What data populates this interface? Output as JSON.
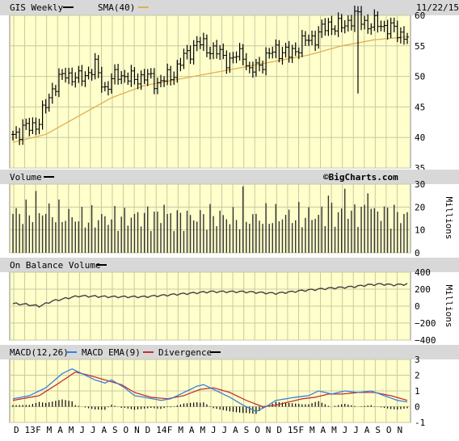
{
  "header": {
    "symbol_label": "GIS Weekly",
    "sma_label": "SMA(40)",
    "date": "11/22/15"
  },
  "volume_panel": {
    "title": "Volume",
    "watermark": "©BigCharts.com",
    "unit": "Millions"
  },
  "obv_panel": {
    "title": "On Balance Volume",
    "unit": "Millions"
  },
  "macd_panel": {
    "legend": [
      "MACD(12,26)",
      "MACD EMA(9)",
      "Divergence"
    ]
  },
  "colors": {
    "plot_bg": "#ffffcc",
    "grid": "#c8c8a0",
    "header_bg": "#d8d8d8",
    "price": "#000000",
    "sma": "#e0b050",
    "obv": "#404040",
    "macd": "#3a7fdc",
    "signal": "#c03030",
    "divergence": "#000000"
  },
  "chart_data": [
    {
      "type": "candlestick",
      "title": "GIS Weekly",
      "x_months": [
        "D",
        "13",
        "F",
        "M",
        "A",
        "M",
        "J",
        "J",
        "A",
        "S",
        "O",
        "N",
        "D",
        "14",
        "F",
        "M",
        "A",
        "M",
        "J",
        "J",
        "A",
        "S",
        "O",
        "N",
        "D",
        "15",
        "F",
        "M",
        "A",
        "M",
        "J",
        "J",
        "A",
        "S",
        "O",
        "N"
      ],
      "ylim": [
        35,
        60
      ],
      "yticks": [
        35,
        40,
        45,
        50,
        55,
        60
      ],
      "price_keypoints": [
        [
          0,
          40.5
        ],
        [
          8,
          42.5
        ],
        [
          12,
          48
        ],
        [
          16,
          50.5
        ],
        [
          20,
          49.5
        ],
        [
          25,
          51.5
        ],
        [
          28,
          48
        ],
        [
          32,
          50.5
        ],
        [
          36,
          49.5
        ],
        [
          40,
          50
        ],
        [
          44,
          49
        ],
        [
          48,
          50
        ],
        [
          52,
          53
        ],
        [
          56,
          55.5
        ],
        [
          62,
          54
        ],
        [
          66,
          52.5
        ],
        [
          70,
          54
        ],
        [
          72,
          50.5
        ],
        [
          76,
          52.5
        ],
        [
          80,
          54.5
        ],
        [
          84,
          53.5
        ],
        [
          88,
          55.5
        ],
        [
          92,
          56.5
        ],
        [
          96,
          58.5
        ],
        [
          100,
          58
        ],
        [
          104,
          60
        ],
        [
          108,
          58.5
        ],
        [
          112,
          58.5
        ],
        [
          116,
          57.5
        ],
        [
          120,
          56.5
        ]
      ],
      "spike": {
        "index": 105,
        "low": 47.2
      },
      "series": [
        {
          "name": "SMA(40)",
          "keypoints": [
            [
              0,
              39.2
            ],
            [
              10,
              40.5
            ],
            [
              20,
              43.5
            ],
            [
              30,
              46.5
            ],
            [
              40,
              48.5
            ],
            [
              50,
              49.5
            ],
            [
              60,
              50.5
            ],
            [
              70,
              51.5
            ],
            [
              80,
              52.5
            ],
            [
              90,
              53.5
            ],
            [
              100,
              55
            ],
            [
              110,
              56
            ],
            [
              120,
              56.5
            ]
          ]
        }
      ]
    },
    {
      "type": "bar",
      "title": "Volume",
      "ylabel": "Millions",
      "ylim": [
        0,
        30
      ],
      "yticks": [
        0,
        10,
        20,
        30
      ],
      "volume_keypoints": [
        [
          0,
          17
        ],
        [
          10,
          18
        ],
        [
          20,
          15
        ],
        [
          30,
          15
        ],
        [
          40,
          16
        ],
        [
          50,
          15
        ],
        [
          60,
          16
        ],
        [
          70,
          15
        ],
        [
          80,
          16
        ],
        [
          90,
          16
        ],
        [
          100,
          17
        ],
        [
          110,
          18
        ],
        [
          120,
          16
        ]
      ],
      "volume_peaks": [
        [
          7,
          27
        ],
        [
          46,
          21
        ],
        [
          70,
          29
        ],
        [
          96,
          25
        ],
        [
          101,
          28
        ],
        [
          108,
          26
        ]
      ]
    },
    {
      "type": "line",
      "title": "On Balance Volume",
      "ylabel": "Millions",
      "ylim": [
        -400,
        400
      ],
      "yticks": [
        -400,
        -200,
        0,
        200,
        400
      ],
      "series": [
        {
          "name": "On Balance Volume",
          "keypoints": [
            [
              0,
              30
            ],
            [
              4,
              20
            ],
            [
              8,
              0
            ],
            [
              12,
              60
            ],
            [
              16,
              90
            ],
            [
              20,
              120
            ],
            [
              30,
              110
            ],
            [
              40,
              110
            ],
            [
              50,
              140
            ],
            [
              60,
              170
            ],
            [
              70,
              170
            ],
            [
              80,
              150
            ],
            [
              90,
              190
            ],
            [
              96,
              210
            ],
            [
              100,
              220
            ],
            [
              104,
              230
            ],
            [
              108,
              250
            ],
            [
              112,
              260
            ],
            [
              116,
              250
            ],
            [
              120,
              260
            ]
          ]
        }
      ]
    },
    {
      "type": "line",
      "title": "MACD",
      "ylim": [
        -1,
        3
      ],
      "yticks": [
        -1,
        0,
        1,
        2,
        3
      ],
      "series": [
        {
          "name": "MACD(12,26)",
          "keypoints": [
            [
              0,
              0.5
            ],
            [
              5,
              0.7
            ],
            [
              10,
              1.2
            ],
            [
              15,
              2.1
            ],
            [
              18,
              2.4
            ],
            [
              21,
              2.1
            ],
            [
              25,
              1.7
            ],
            [
              28,
              1.5
            ],
            [
              30,
              1.7
            ],
            [
              34,
              1.2
            ],
            [
              37,
              0.7
            ],
            [
              40,
              0.6
            ],
            [
              45,
              0.4
            ],
            [
              48,
              0.5
            ],
            [
              52,
              0.9
            ],
            [
              56,
              1.3
            ],
            [
              58,
              1.4
            ],
            [
              62,
              1.0
            ],
            [
              66,
              0.6
            ],
            [
              70,
              0.1
            ],
            [
              74,
              -0.3
            ],
            [
              77,
              0.0
            ],
            [
              80,
              0.4
            ],
            [
              83,
              0.5
            ],
            [
              86,
              0.6
            ],
            [
              90,
              0.7
            ],
            [
              93,
              1.0
            ],
            [
              97,
              0.8
            ],
            [
              101,
              1.0
            ],
            [
              105,
              0.9
            ],
            [
              109,
              1.0
            ],
            [
              113,
              0.7
            ],
            [
              117,
              0.4
            ],
            [
              120,
              0.3
            ]
          ]
        },
        {
          "name": "MACD EMA(9)",
          "keypoints": [
            [
              0,
              0.4
            ],
            [
              8,
              0.7
            ],
            [
              14,
              1.5
            ],
            [
              19,
              2.2
            ],
            [
              23,
              2.0
            ],
            [
              28,
              1.7
            ],
            [
              33,
              1.4
            ],
            [
              37,
              0.9
            ],
            [
              42,
              0.6
            ],
            [
              47,
              0.5
            ],
            [
              52,
              0.7
            ],
            [
              57,
              1.1
            ],
            [
              61,
              1.2
            ],
            [
              66,
              0.9
            ],
            [
              71,
              0.4
            ],
            [
              76,
              0.0
            ],
            [
              80,
              0.1
            ],
            [
              84,
              0.3
            ],
            [
              88,
              0.5
            ],
            [
              92,
              0.6
            ],
            [
              96,
              0.8
            ],
            [
              100,
              0.8
            ],
            [
              105,
              0.9
            ],
            [
              110,
              0.9
            ],
            [
              115,
              0.7
            ],
            [
              120,
              0.4
            ]
          ]
        }
      ]
    }
  ]
}
